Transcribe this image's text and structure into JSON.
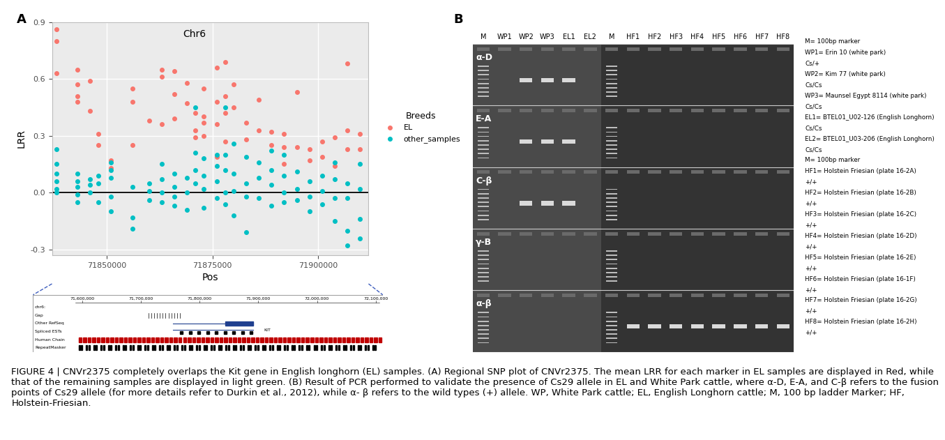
{
  "chart_data": {
    "type": "scatter",
    "title": "Chr6",
    "x_label": "Pos",
    "y_label": "LRR",
    "xlim": [
      71837000,
      71912000
    ],
    "xticks": [
      71850000,
      71875000,
      71900000
    ],
    "ylim": [
      -0.33,
      0.9
    ],
    "yticks": [
      -0.3,
      0.0,
      0.3,
      0.6,
      0.9
    ],
    "grid": true,
    "legend": "right",
    "legend_title": "Breeds",
    "hline": 0.0,
    "series": [
      {
        "name": "EL",
        "color": "#F8766D",
        "marker": "circle",
        "x": [
          71838000,
          71838000,
          71838000,
          71843000,
          71843000,
          71843000,
          71843000,
          71846000,
          71846000,
          71848000,
          71848000,
          71851000,
          71851000,
          71856000,
          71856000,
          71856000,
          71860000,
          71863000,
          71863000,
          71863000,
          71866000,
          71866000,
          71866000,
          71869000,
          71869000,
          71871000,
          71871000,
          71871000,
          71873000,
          71873000,
          71873000,
          71873000,
          71876000,
          71876000,
          71876000,
          71876000,
          71878000,
          71878000,
          71878000,
          71878000,
          71880000,
          71880000,
          71883000,
          71883000,
          71886000,
          71886000,
          71889000,
          71889000,
          71892000,
          71892000,
          71892000,
          71895000,
          71895000,
          71898000,
          71898000,
          71901000,
          71901000,
          71904000,
          71904000,
          71907000,
          71907000,
          71907000,
          71910000,
          71910000
        ],
        "values": [
          0.86,
          0.8,
          0.63,
          0.65,
          0.57,
          0.51,
          0.48,
          0.59,
          0.43,
          0.31,
          0.25,
          0.17,
          0.13,
          0.55,
          0.48,
          0.25,
          0.38,
          0.65,
          0.61,
          0.36,
          0.64,
          0.52,
          0.39,
          0.58,
          0.47,
          0.42,
          0.33,
          0.29,
          0.55,
          0.4,
          0.37,
          0.3,
          0.66,
          0.48,
          0.36,
          0.19,
          0.69,
          0.51,
          0.42,
          0.27,
          0.57,
          0.45,
          0.37,
          0.28,
          0.49,
          0.33,
          0.32,
          0.25,
          0.31,
          0.24,
          0.15,
          0.53,
          0.24,
          0.23,
          0.17,
          0.27,
          0.19,
          0.29,
          0.14,
          0.68,
          0.33,
          0.23,
          0.31,
          0.23
        ]
      },
      {
        "name": "other_samples",
        "color": "#00BFC4",
        "marker": "circle",
        "x": [
          71838000,
          71838000,
          71838000,
          71838000,
          71838000,
          71838000,
          71843000,
          71843000,
          71843000,
          71843000,
          71843000,
          71846000,
          71846000,
          71846000,
          71848000,
          71848000,
          71848000,
          71851000,
          71851000,
          71851000,
          71851000,
          71851000,
          71856000,
          71856000,
          71856000,
          71860000,
          71860000,
          71860000,
          71863000,
          71863000,
          71863000,
          71863000,
          71866000,
          71866000,
          71866000,
          71866000,
          71869000,
          71869000,
          71869000,
          71871000,
          71871000,
          71871000,
          71871000,
          71873000,
          71873000,
          71873000,
          71873000,
          71876000,
          71876000,
          71876000,
          71876000,
          71878000,
          71878000,
          71878000,
          71878000,
          71878000,
          71880000,
          71880000,
          71880000,
          71880000,
          71883000,
          71883000,
          71883000,
          71883000,
          71886000,
          71886000,
          71886000,
          71889000,
          71889000,
          71889000,
          71889000,
          71892000,
          71892000,
          71892000,
          71892000,
          71895000,
          71895000,
          71895000,
          71898000,
          71898000,
          71898000,
          71901000,
          71901000,
          71901000,
          71904000,
          71904000,
          71904000,
          71904000,
          71907000,
          71907000,
          71907000,
          71907000,
          71910000,
          71910000,
          71910000,
          71910000
        ],
        "values": [
          0.23,
          0.15,
          0.1,
          0.06,
          0.02,
          0.0,
          0.1,
          0.06,
          0.03,
          -0.01,
          -0.05,
          0.07,
          0.04,
          0.0,
          0.09,
          0.05,
          -0.05,
          0.16,
          0.12,
          0.08,
          -0.02,
          -0.1,
          0.03,
          -0.13,
          -0.19,
          0.05,
          0.01,
          -0.04,
          0.15,
          0.07,
          0.0,
          -0.05,
          0.1,
          0.03,
          -0.02,
          -0.07,
          0.08,
          0.0,
          -0.09,
          0.45,
          0.21,
          0.12,
          0.05,
          0.18,
          0.09,
          0.02,
          -0.08,
          0.2,
          0.14,
          0.06,
          -0.03,
          0.45,
          0.2,
          0.12,
          0.0,
          -0.06,
          0.26,
          0.1,
          0.01,
          -0.12,
          0.19,
          0.05,
          -0.02,
          -0.21,
          0.16,
          0.08,
          -0.03,
          0.22,
          0.12,
          0.04,
          -0.07,
          0.2,
          0.09,
          0.0,
          -0.05,
          0.11,
          0.02,
          -0.04,
          0.06,
          -0.02,
          -0.1,
          0.09,
          0.01,
          -0.06,
          0.16,
          0.07,
          -0.03,
          -0.15,
          0.05,
          -0.03,
          -0.2,
          -0.28,
          0.15,
          0.02,
          -0.14,
          -0.24
        ]
      }
    ]
  },
  "panel_labels": [
    "A",
    "B"
  ],
  "browser": {
    "scale_labels": [
      "71,600,000",
      "71,700,000",
      "71,800,000",
      "71,900,000",
      "72,000,000",
      "72,100,000"
    ],
    "tracks": [
      "chr6:",
      "Gap",
      "Other RefSeq",
      "Spliced ESTs",
      "Human Chain",
      "RepeatMasker"
    ],
    "gene": "KIT"
  },
  "gel": {
    "lanes": [
      "M",
      "WP1",
      "WP2",
      "WP3",
      "EL1",
      "EL2",
      "M",
      "HF1",
      "HF2",
      "HF3",
      "HF4",
      "HF5",
      "HF6",
      "HF7",
      "HF8"
    ],
    "rows": [
      {
        "label": "α-D",
        "bands": [
          "WP2",
          "WP3",
          "EL1"
        ]
      },
      {
        "label": "E-A",
        "bands": [
          "WP2",
          "WP3",
          "EL1"
        ]
      },
      {
        "label": "C-β",
        "bands": [
          "WP2",
          "WP3",
          "EL1"
        ]
      },
      {
        "label": "γ-B",
        "bands": []
      },
      {
        "label": "α-β",
        "bands": [
          "HF1",
          "HF2",
          "HF3",
          "HF4",
          "HF5",
          "HF6",
          "HF7",
          "HF8"
        ]
      }
    ],
    "key": [
      "M= 100bp marker",
      "WP1= Erin 10 (white park)",
      "Cs/+",
      "WP2= Kim 77 (white park)",
      "Cs/Cs",
      "WP3= Maunsel Egypt 8114 (white park)",
      "Cs/Cs",
      "EL1= BTEL01_U02-126 (English Longhorn)",
      "Cs/Cs",
      "EL2= BTEL01_U03-206 (English Longhorn)",
      "Cs/Cs",
      "M= 100bp marker",
      "HF1= Holstein Friesian (plate 16-2A)",
      "+/+",
      "HF2= Holstein Friesian (plate 16-2B)",
      "+/+",
      "HF3= Holstein Friesian (plate 16-2C)",
      "+/+",
      "HF4= Holstein Friesian (plate 16-2D)",
      "+/+",
      "HF5= Holstein Friesian (plate 16-2E)",
      "+/+",
      "HF6= Holstein Friesian (plate 16-1F)",
      "+/+",
      "HF7= Holstein Friesian (plate 16-2G)",
      "+/+",
      "HF8= Holstein Friesian (plate 16-2H)",
      "+/+"
    ]
  },
  "caption": "FIGURE 4 | CNVr2375 completely overlaps the Kit gene in English longhorn (EL) samples. (A) Regional SNP plot of CNVr2375. The mean LRR for each marker in EL samples are displayed in Red, while that of the remaining samples are displayed in light green. (B) Result of PCR performed to validate the presence of Cs29 allele in EL and White Park cattle, where α-D, E-A, and C-β refers to the fusion points of Cs29 allele (for more details refer to Durkin et al., 2012), while α- β refers to the wild types (+) allele. WP, White Park cattle; EL, English Longhorn cattle; M, 100 bp ladder Marker; HF, Holstein-Friesian."
}
